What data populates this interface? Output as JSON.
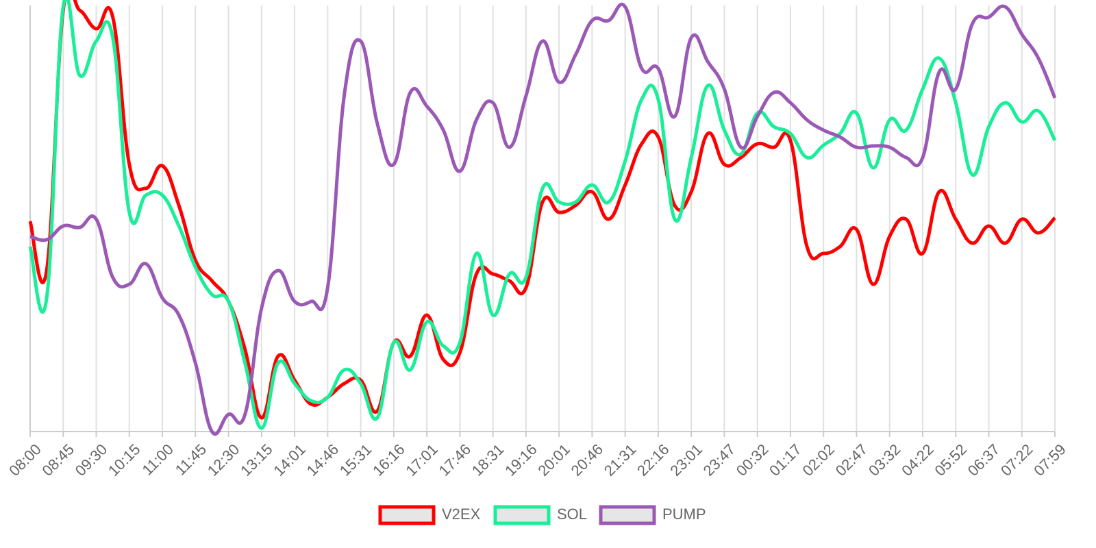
{
  "chart_data": {
    "type": "line",
    "categories": [
      "08:00",
      null,
      "08:45",
      null,
      "09:30",
      null,
      "10:15",
      null,
      "11:00",
      null,
      "11:45",
      null,
      "12:30",
      null,
      "13:15",
      null,
      "14:01",
      null,
      "14:46",
      null,
      "15:31",
      null,
      "16:16",
      null,
      "17:01",
      null,
      "17:46",
      null,
      "18:31",
      null,
      "19:16",
      null,
      "20:01",
      null,
      "20:46",
      null,
      "21:31",
      null,
      "22:16",
      null,
      "23:01",
      null,
      "23:47",
      null,
      "00:32",
      null,
      "01:17",
      null,
      "02:02",
      null,
      "02:47",
      null,
      "03:32",
      null,
      "04:22",
      null,
      "05:52",
      null,
      "06:37",
      null,
      "07:22",
      null,
      "07:59"
    ],
    "ylim": [
      0,
      622
    ],
    "grid": true,
    "legend": "bottom",
    "series": [
      {
        "name": "V2EX",
        "color": "#ff0000",
        "values": [
          307,
          235,
          615,
          615,
          588,
          605,
          390,
          355,
          388,
          330,
          250,
          220,
          190,
          120,
          20,
          110,
          75,
          40,
          50,
          70,
          75,
          30,
          130,
          110,
          170,
          105,
          115,
          230,
          230,
          220,
          210,
          335,
          320,
          330,
          350,
          310,
          360,
          420,
          430,
          330,
          350,
          435,
          390,
          400,
          420,
          415,
          425,
          270,
          260,
          270,
          295,
          215,
          285,
          310,
          260,
          350,
          310,
          275,
          300,
          275,
          310,
          290,
          312
        ]
      },
      {
        "name": "SOL",
        "color": "#1aee99",
        "values": [
          270,
          195,
          620,
          520,
          570,
          575,
          320,
          345,
          345,
          300,
          240,
          200,
          190,
          100,
          5,
          100,
          70,
          45,
          50,
          90,
          70,
          20,
          130,
          90,
          160,
          125,
          130,
          260,
          170,
          230,
          225,
          355,
          335,
          335,
          360,
          335,
          395,
          485,
          485,
          310,
          400,
          505,
          440,
          405,
          465,
          445,
          435,
          400,
          418,
          435,
          465,
          385,
          455,
          440,
          500,
          545,
          480,
          375,
          445,
          480,
          452,
          468,
          425
        ]
      },
      {
        "name": "PUMP",
        "color": "#9b59b6",
        "values": [
          285,
          280,
          300,
          298,
          310,
          225,
          215,
          245,
          195,
          170,
          100,
          0,
          25,
          25,
          180,
          235,
          190,
          190,
          210,
          490,
          570,
          450,
          390,
          495,
          475,
          440,
          380,
          455,
          480,
          415,
          490,
          570,
          510,
          550,
          600,
          600,
          620,
          530,
          530,
          460,
          575,
          540,
          500,
          415,
          460,
          495,
          480,
          455,
          440,
          430,
          415,
          417,
          415,
          400,
          400,
          525,
          500,
          595,
          605,
          620,
          580,
          545,
          487
        ]
      }
    ]
  }
}
